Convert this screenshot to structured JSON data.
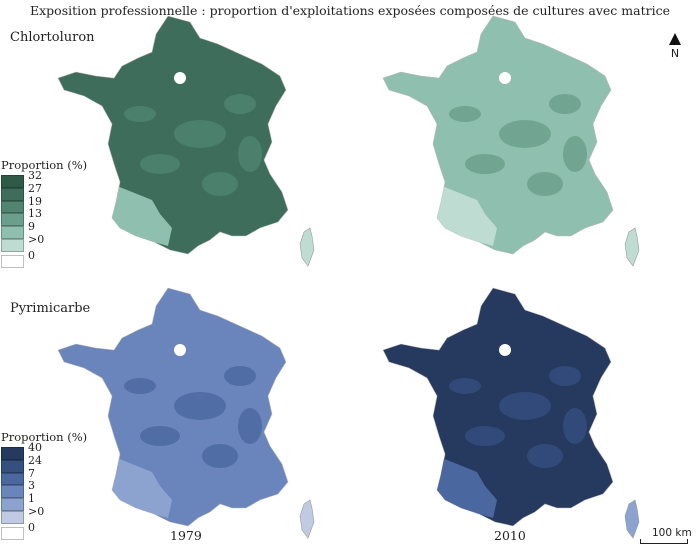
{
  "title": "Exposition professionnelle : proportion d'exploitations exposées composées de cultures avec matrice",
  "north_label": "N",
  "scale_label": "100 km",
  "years": [
    "1979",
    "2010"
  ],
  "rows": [
    {
      "substance": "Chlortoluron",
      "legend_title": "Proportion (%)",
      "legend": [
        {
          "label": "32",
          "color": "#2f5a47"
        },
        {
          "label": "27",
          "color": "#3e6e5b"
        },
        {
          "label": "19",
          "color": "#4f8571"
        },
        {
          "label": "13",
          "color": "#699f8b"
        },
        {
          "label": "9",
          "color": "#8fbfae"
        },
        {
          "label": ">0",
          "color": "#bfdcd2"
        },
        {
          "label": "0",
          "color": "#ffffff"
        }
      ],
      "maps": [
        {
          "fill": "#3e6e5b",
          "south": "#8fbfae",
          "patch": "#4f8571",
          "corsica": "#bfdcd2"
        },
        {
          "fill": "#8fbfae",
          "south": "#bfdcd2",
          "patch": "#699f8b",
          "corsica": "#bfdcd2"
        }
      ]
    },
    {
      "substance": "Pyrimicarbe",
      "legend_title": "Proportion (%)",
      "legend": [
        {
          "label": "40",
          "color": "#263a5f"
        },
        {
          "label": "24",
          "color": "#354f7f"
        },
        {
          "label": "7",
          "color": "#4b67a0"
        },
        {
          "label": "3",
          "color": "#6a85bb"
        },
        {
          "label": "1",
          "color": "#8da3cf"
        },
        {
          "label": ">0",
          "color": "#c0cbe3"
        },
        {
          "label": "0",
          "color": "#ffffff"
        }
      ],
      "maps": [
        {
          "fill": "#6a85bb",
          "south": "#8da3cf",
          "patch": "#4b67a0",
          "corsica": "#c0cbe3"
        },
        {
          "fill": "#263a5f",
          "south": "#4b67a0",
          "patch": "#354f7f",
          "corsica": "#8da3cf"
        }
      ]
    }
  ]
}
